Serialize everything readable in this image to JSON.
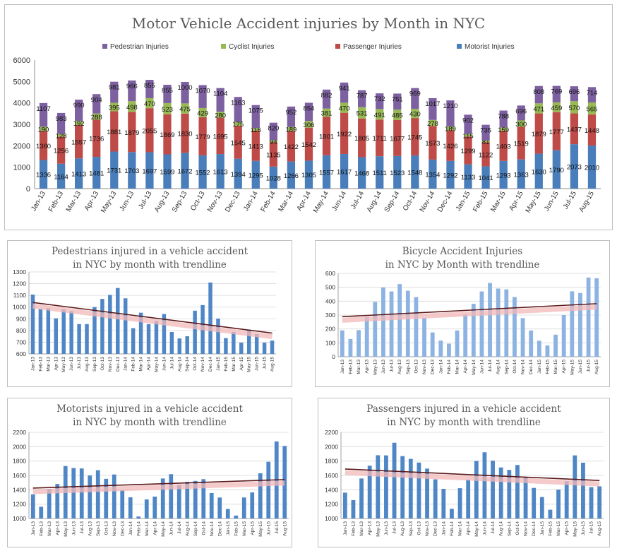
{
  "colors": {
    "motorist": "#4a7ebb",
    "passenger": "#be4b48",
    "cyclist": "#98b954",
    "pedestrian": "#7d60a0",
    "small_bar": "#4f86c6",
    "bike_bar": "#8db3e2",
    "trend": "#5c1a1a",
    "trend_glow": "#f2b8b8",
    "grid": "#d9d9d9",
    "axis": "#8c8c8c"
  },
  "chart_data": [
    {
      "type": "bar",
      "stacked": true,
      "title": "Motor Vehicle Accident injuries by Month in NYC",
      "legend_position": "top",
      "ylim": [
        0,
        6000
      ],
      "yticks": [
        0,
        1000,
        2000,
        3000,
        4000,
        5000,
        6000
      ],
      "grid": false,
      "categories": [
        "Jan-13",
        "Feb-13",
        "Mar-13",
        "Apr-13",
        "May-13",
        "Jun-13",
        "Jul-13",
        "Aug-13",
        "Sep-13",
        "Oct-13",
        "Nov-13",
        "Dec-13",
        "Jan-14",
        "Feb-14",
        "Mar-14",
        "Apr-14",
        "May-14",
        "Jun-14",
        "Jul-14",
        "Aug-14",
        "Sep-14",
        "Oct-14",
        "Nov-14",
        "Dec-14",
        "Jan-15",
        "Feb-15",
        "Mar-15",
        "Apr-15",
        "May-15",
        "Jun-15",
        "Jul-15",
        "Aug-15"
      ],
      "series": [
        {
          "name": "Motorist Injuries",
          "color_key": "motorist",
          "values": [
            1336,
            1164,
            1413,
            1481,
            1731,
            1703,
            1697,
            1599,
            1672,
            1552,
            1613,
            1394,
            1295,
            1028,
            1266,
            1305,
            1557,
            1617,
            1468,
            1511,
            1523,
            1548,
            1354,
            1292,
            1133,
            1041,
            1293,
            1363,
            1630,
            1790,
            2073,
            2010
          ]
        },
        {
          "name": "Passenger Injuries",
          "color_key": "passenger",
          "values": [
            1360,
            1256,
            1557,
            1736,
            1881,
            1879,
            2055,
            1869,
            1830,
            1779,
            1695,
            1545,
            1413,
            1135,
            1422,
            1542,
            1801,
            1922,
            1805,
            1711,
            1677,
            1745,
            1573,
            1426,
            1299,
            1122,
            1403,
            1519,
            1879,
            1777,
            1437,
            1448
          ]
        },
        {
          "name": "Cyclist Injuries",
          "color_key": "cyclist",
          "values": [
            190,
            128,
            192,
            288,
            395,
            498,
            470,
            523,
            475,
            429,
            280,
            175,
            116,
            94,
            189,
            306,
            381,
            470,
            531,
            491,
            485,
            430,
            278,
            189,
            115,
            81,
            159,
            300,
            471,
            459,
            570,
            565
          ]
        },
        {
          "name": "Pedestrian Injuries",
          "color_key": "pedestrian",
          "values": [
            1107,
            983,
            990,
            904,
            981,
            966,
            855,
            855,
            1000,
            1070,
            1104,
            1163,
            1075,
            820,
            952,
            854,
            882,
            941,
            787,
            732,
            751,
            969,
            1017,
            1210,
            902,
            735,
            788,
            696,
            808,
            769,
            696,
            714
          ]
        }
      ],
      "legend_order": [
        "Pedestrian Injuries",
        "Cyclist Injuries",
        "Passenger Injuries",
        "Motorist Injuries"
      ]
    },
    {
      "type": "bar",
      "title": "Pedestrians injured in a vehicle accident in NYC by month with trendline",
      "title_lines": [
        "Pedestrians injured in a vehicle accident",
        "in NYC by month with trendline"
      ],
      "ylim": [
        600,
        1300
      ],
      "yticks": [
        600,
        700,
        800,
        900,
        1000,
        1100,
        1200,
        1300
      ],
      "grid": true,
      "trendline": "linear",
      "color_key": "small_bar",
      "categories": [
        "Jan-13",
        "Feb-13",
        "Mar-13",
        "Apr-13",
        "May-13",
        "Jun-13",
        "Jul-13",
        "Aug-13",
        "Sep-13",
        "Oct-13",
        "Nov-13",
        "Dec-13",
        "Jan-14",
        "Feb-14",
        "Mar-14",
        "Apr-14",
        "May-14",
        "Jun-14",
        "Jul-14",
        "Aug-14",
        "Sep-14",
        "Oct-14",
        "Nov-14",
        "Dec-14",
        "Jan-15",
        "Feb-15",
        "Mar-15",
        "Apr-15",
        "May-15",
        "Jun-15",
        "Jul-15",
        "Aug-15"
      ],
      "values": [
        1107,
        983,
        990,
        904,
        981,
        966,
        855,
        855,
        1000,
        1070,
        1104,
        1163,
        1075,
        820,
        952,
        854,
        882,
        941,
        787,
        732,
        751,
        969,
        1017,
        1210,
        902,
        735,
        788,
        696,
        808,
        769,
        696,
        714
      ]
    },
    {
      "type": "bar",
      "title": "Bicycle Accident Injuries in NYC by Month with trendline",
      "title_lines": [
        "Bicycle Accident Injuries",
        "in NYC by Month with trendline"
      ],
      "ylim": [
        0,
        600
      ],
      "yticks": [
        0,
        100,
        200,
        300,
        400,
        500,
        600
      ],
      "grid": true,
      "trendline": "linear",
      "color_key": "bike_bar",
      "categories": [
        "Jan-13",
        "Feb-13",
        "Mar-13",
        "Apr-13",
        "May-13",
        "Jun-13",
        "Jul-13",
        "Aug-13",
        "Sep-13",
        "Oct-13",
        "Nov-13",
        "Dec-13",
        "Jan-14",
        "Feb-14",
        "Mar-14",
        "Apr-14",
        "May-14",
        "Jun-14",
        "Jul-14",
        "Aug-14",
        "Sep-14",
        "Oct-14",
        "Nov-14",
        "Dec-14",
        "Jan-15",
        "Feb-15",
        "Mar-15",
        "Apr-15",
        "May-15",
        "Jun-15",
        "Jul-15",
        "Aug-15"
      ],
      "values": [
        190,
        128,
        192,
        288,
        395,
        498,
        470,
        523,
        475,
        429,
        280,
        175,
        116,
        94,
        189,
        306,
        381,
        470,
        531,
        491,
        485,
        430,
        278,
        189,
        115,
        81,
        159,
        300,
        471,
        459,
        570,
        565
      ]
    },
    {
      "type": "bar",
      "title": "Motorists injured in a vehicle accident in NYC by month with trendline",
      "title_lines": [
        "Motorists injured in a vehicle accident",
        "in NYC by month with trendline"
      ],
      "ylim": [
        1000,
        2200
      ],
      "yticks": [
        1000,
        1200,
        1400,
        1600,
        1800,
        2000,
        2200
      ],
      "grid": true,
      "trendline": "linear",
      "color_key": "small_bar",
      "categories": [
        "Jan-13",
        "Feb-13",
        "Mar-13",
        "Apr-13",
        "May-13",
        "Jun-13",
        "Jul-13",
        "Aug-13",
        "Sep-13",
        "Oct-13",
        "Nov-13",
        "Dec-13",
        "Jan-14",
        "Feb-14",
        "Mar-14",
        "Apr-14",
        "May-14",
        "Jun-14",
        "Jul-14",
        "Aug-14",
        "Sep-14",
        "Oct-14",
        "Nov-14",
        "Dec-14",
        "Jan-15",
        "Feb-15",
        "Mar-15",
        "Apr-15",
        "May-15",
        "Jun-15",
        "Jul-15",
        "Aug-15"
      ],
      "values": [
        1336,
        1164,
        1413,
        1481,
        1731,
        1703,
        1697,
        1599,
        1672,
        1552,
        1613,
        1394,
        1295,
        1028,
        1266,
        1305,
        1557,
        1617,
        1468,
        1511,
        1523,
        1548,
        1354,
        1292,
        1133,
        1041,
        1293,
        1363,
        1630,
        1790,
        2073,
        2010
      ]
    },
    {
      "type": "bar",
      "title": "Passengers injured in a vehicle accident in NYC by month with trendline",
      "title_lines": [
        "Passengers injured in a vehicle accident",
        "in NYC by month with trendline"
      ],
      "ylim": [
        1000,
        2200
      ],
      "yticks": [
        1000,
        1200,
        1400,
        1600,
        1800,
        2000,
        2200
      ],
      "grid": true,
      "trendline": "linear",
      "color_key": "small_bar",
      "categories": [
        "Jan-13",
        "Feb-13",
        "Mar-13",
        "Apr-13",
        "May-13",
        "Jun-13",
        "Jul-13",
        "Aug-13",
        "Sep-13",
        "Oct-13",
        "Nov-13",
        "Dec-13",
        "Jan-14",
        "Feb-14",
        "Mar-14",
        "Apr-14",
        "May-14",
        "Jun-14",
        "Jul-14",
        "Aug-14",
        "Sep-14",
        "Oct-14",
        "Nov-14",
        "Dec-14",
        "Jan-15",
        "Feb-15",
        "Mar-15",
        "Apr-15",
        "May-15",
        "Jun-15",
        "Jul-15",
        "Aug-15"
      ],
      "values": [
        1360,
        1256,
        1557,
        1736,
        1881,
        1879,
        2055,
        1869,
        1830,
        1779,
        1695,
        1545,
        1413,
        1135,
        1422,
        1542,
        1801,
        1922,
        1805,
        1711,
        1677,
        1745,
        1573,
        1426,
        1299,
        1122,
        1403,
        1519,
        1879,
        1777,
        1437,
        1448
      ]
    }
  ]
}
